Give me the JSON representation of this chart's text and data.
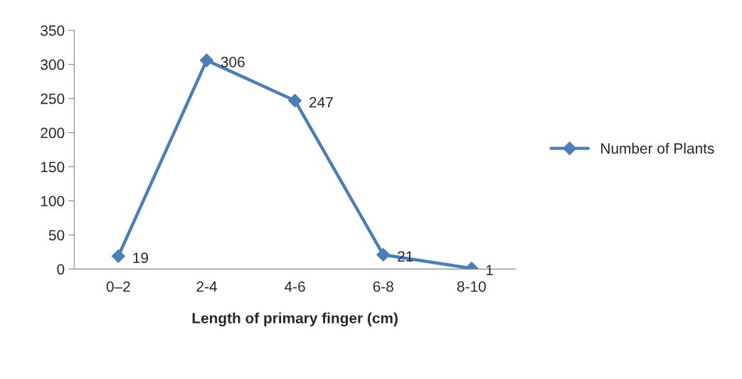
{
  "chart_data": {
    "type": "line",
    "xlabel": "Length of primary finger (cm)",
    "categories": [
      "0–2",
      "2-4",
      "4-6",
      "6-8",
      "8-10"
    ],
    "series": [
      {
        "name": "Number of Plants",
        "color": "#4a7ebb",
        "values": [
          19,
          306,
          247,
          21,
          1
        ]
      }
    ],
    "ylim": [
      0,
      350
    ],
    "yticks": [
      0,
      50,
      100,
      150,
      200,
      250,
      300,
      350
    ],
    "data_labels": true,
    "legend": "right",
    "marker": "diamond",
    "line_style": "solid",
    "grid": false
  }
}
